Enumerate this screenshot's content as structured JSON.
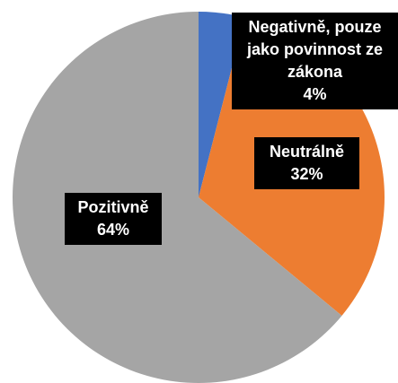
{
  "chart_data": {
    "type": "pie",
    "categories": [
      "Negativně, pouze jako povinnost ze zákona",
      "Neutrálně",
      "Pozitivně"
    ],
    "values": [
      4,
      32,
      64
    ],
    "value_labels": [
      "4%",
      "32%",
      "64%"
    ],
    "colors": [
      "#4472c4",
      "#ed7d31",
      "#a5a5a5"
    ]
  }
}
